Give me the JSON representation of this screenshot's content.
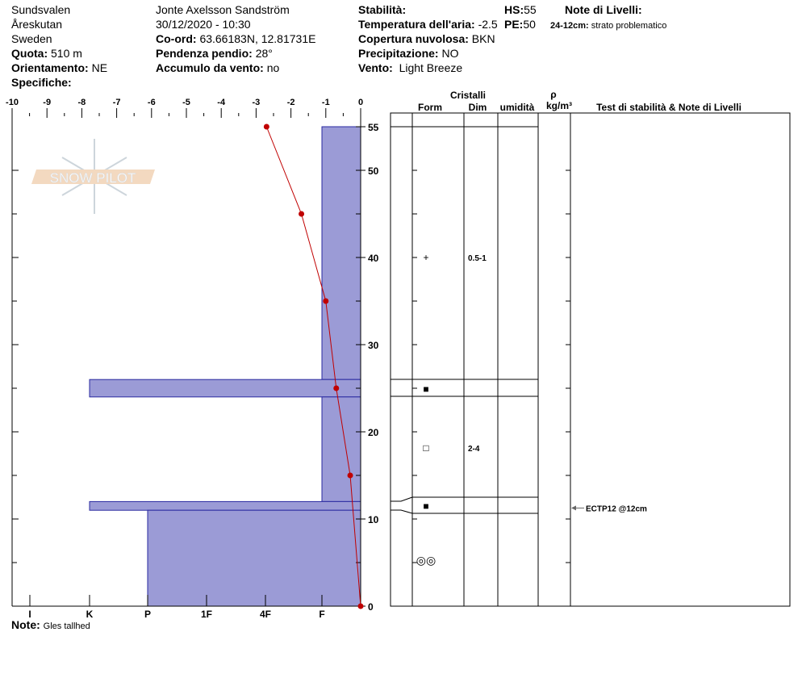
{
  "header": {
    "location": "Sundsvalen",
    "area": "Åreskutan",
    "country": "Sweden",
    "elevation_label": "Quota:",
    "elevation": "510 m",
    "aspect_label": "Orientamento:",
    "aspect": "NE",
    "specifics_label": "Specifiche:",
    "observer": "Jonte Axelsson Sandström",
    "datetime": "30/12/2020 - 10:30",
    "coord_label": "Co-ord:",
    "coord": "63.66183N, 12.81731E",
    "slope_label": "Pendenza pendio:",
    "slope": "28°",
    "wind_loading_label": "Accumulo da vento:",
    "wind_loading": "no",
    "stability_label": "Stabilità:",
    "stability": "",
    "air_temp_label": "Temperatura dell'aria:",
    "air_temp": "-2.5",
    "sky_label": "Copertura nuvolosa:",
    "sky": "BKN",
    "precip_label": "Precipitazione:",
    "precip": "NO",
    "wind_label": "Vento:",
    "wind": "Light Breeze",
    "hs_label": "HS:",
    "hs": "55",
    "pe_label": "PE:",
    "pe": "50",
    "layer_notes_label": "Note di Livelli:",
    "layer_note_range": "24-12cm:",
    "layer_note_text": "strato problematico",
    "note_label": "Note:",
    "note": "Gles tallhed"
  },
  "logo": "SNOW PILOT",
  "colors": {
    "hardness_fill": "#9b9bd6",
    "hardness_stroke": "#2a2aa0",
    "temp": "#c00000"
  },
  "chart_data": {
    "type": "snow-profile",
    "temp_axis": {
      "ticks": [
        -10,
        -9,
        -8,
        -7,
        -6,
        -5,
        -4,
        -3,
        -2,
        -1,
        0
      ],
      "range": [
        -10,
        0
      ]
    },
    "height_axis": {
      "ticks": [
        0,
        10,
        20,
        30,
        40,
        50,
        55
      ],
      "range": [
        0,
        55
      ]
    },
    "hardness_axis": {
      "ticks": [
        "I",
        "K",
        "P",
        "1F",
        "4F",
        "F"
      ]
    },
    "temperature_profile": [
      {
        "h": 55,
        "t": -2.7
      },
      {
        "h": 45,
        "t": -1.7
      },
      {
        "h": 35,
        "t": -1.0
      },
      {
        "h": 25,
        "t": -0.7
      },
      {
        "h": 15,
        "t": -0.3
      },
      {
        "h": 0,
        "t": 0
      }
    ],
    "layers": [
      {
        "top": 55,
        "bottom": 26,
        "hardness": "F",
        "form": "+",
        "dim": "0.5-1"
      },
      {
        "top": 26,
        "bottom": 24,
        "hardness": "K",
        "form": "■",
        "dim": ""
      },
      {
        "top": 24,
        "bottom": 12,
        "hardness": "F",
        "form": "□",
        "dim": "2-4"
      },
      {
        "top": 12,
        "bottom": 11,
        "hardness": "K",
        "form": "■",
        "dim": ""
      },
      {
        "top": 11,
        "bottom": 0,
        "hardness": "P",
        "form": "◎◎",
        "dim": ""
      }
    ],
    "table_headers": {
      "crystals": "Cristalli",
      "form": "Form",
      "dim": "Dim",
      "wetness": "umidità",
      "rho": "ρ",
      "density_unit": "kg/m³",
      "notes": "Test di stabilità & Note di Livelli"
    },
    "stability_tests": [
      {
        "h": 12,
        "label": "ECTP12 @12cm"
      }
    ]
  }
}
